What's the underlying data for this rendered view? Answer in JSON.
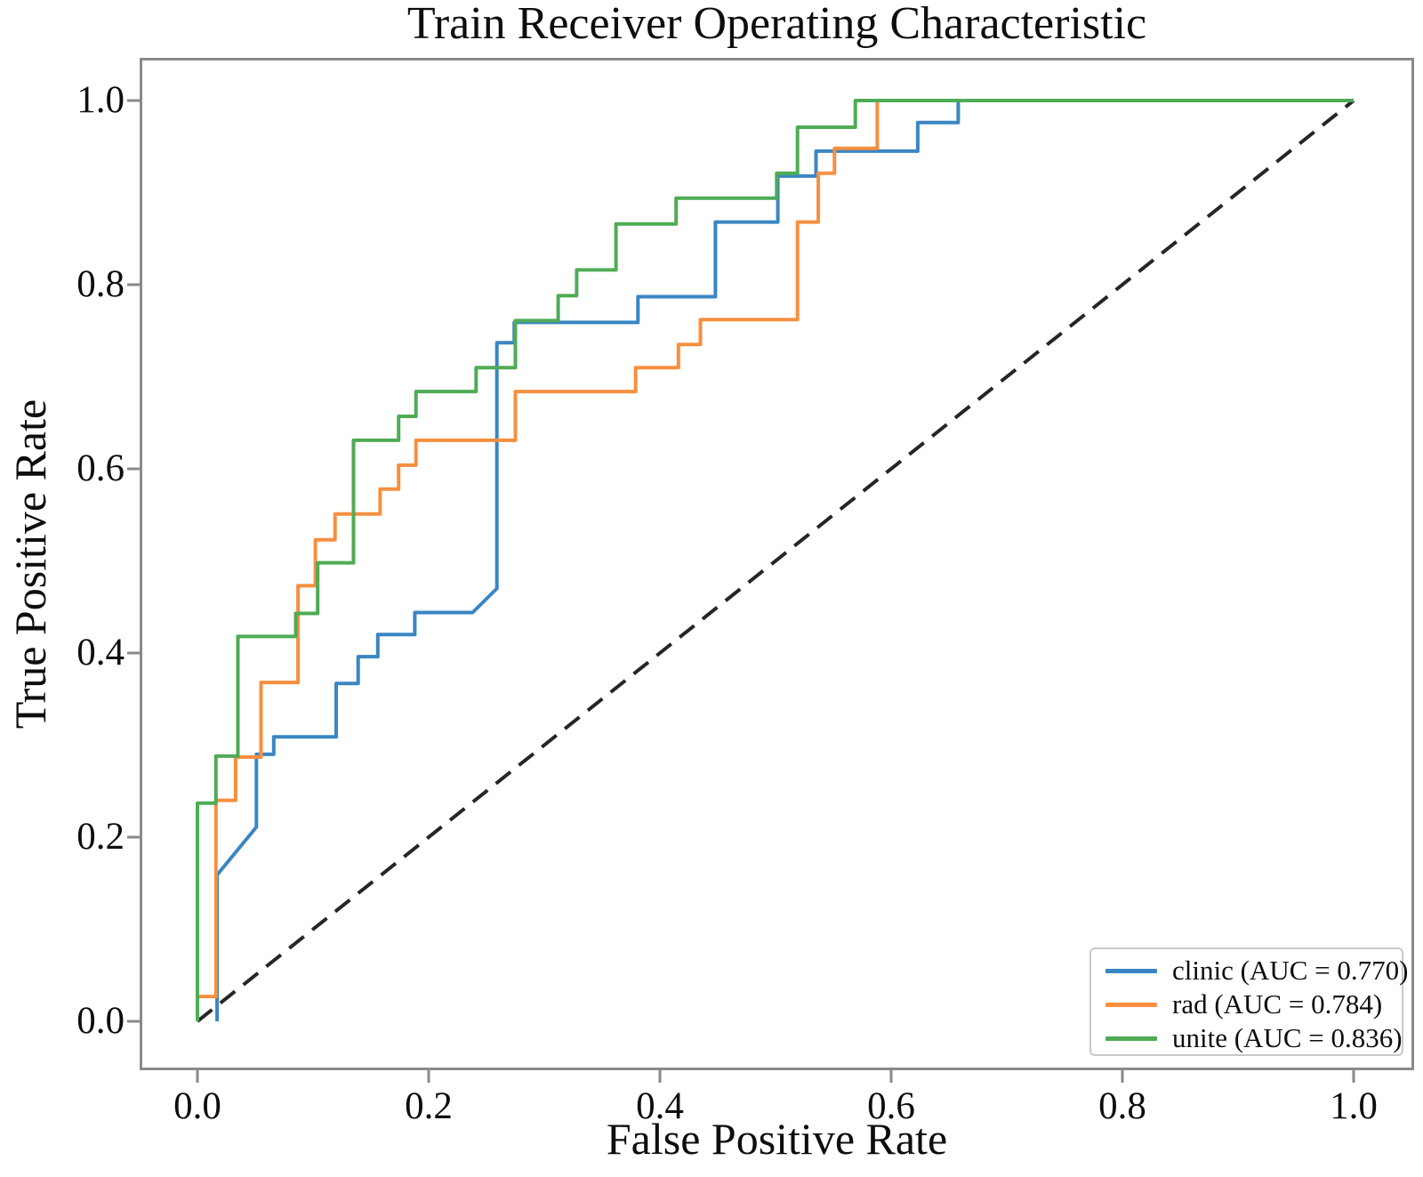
{
  "chart_data": {
    "type": "line",
    "subtype": "roc-step-curves",
    "title": "Train Receiver Operating Characteristic",
    "xlabel": "False Positive Rate",
    "ylabel": "True Positive Rate",
    "xlim": [
      -0.05,
      1.05
    ],
    "ylim": [
      -0.05,
      1.05
    ],
    "grid": false,
    "legend_position": "lower right",
    "x_ticks": [
      0.0,
      0.2,
      0.4,
      0.6,
      0.8,
      1.0
    ],
    "y_ticks": [
      0.0,
      0.2,
      0.4,
      0.6,
      0.8,
      1.0
    ],
    "x_tick_labels": [
      "0.0",
      "0.2",
      "0.4",
      "0.6",
      "0.8",
      "1.0"
    ],
    "y_tick_labels": [
      "0.0",
      "0.2",
      "0.4",
      "0.6",
      "0.8",
      "1.0"
    ],
    "series": [
      {
        "name": "clinic",
        "auc": 0.77,
        "legend": "clinic (AUC = 0.770)",
        "color": "#3a86c3",
        "points": [
          [
            0.017,
            0
          ],
          [
            0.017,
            0.159
          ],
          [
            0.051,
            0.211
          ],
          [
            0.051,
            0.29
          ],
          [
            0.066,
            0.29
          ],
          [
            0.066,
            0.309
          ],
          [
            0.12,
            0.309
          ],
          [
            0.12,
            0.367
          ],
          [
            0.139,
            0.367
          ],
          [
            0.139,
            0.396
          ],
          [
            0.156,
            0.396
          ],
          [
            0.156,
            0.42
          ],
          [
            0.188,
            0.42
          ],
          [
            0.188,
            0.444
          ],
          [
            0.238,
            0.444
          ],
          [
            0.259,
            0.47
          ],
          [
            0.259,
            0.737
          ],
          [
            0.274,
            0.737
          ],
          [
            0.274,
            0.759
          ],
          [
            0.381,
            0.759
          ],
          [
            0.381,
            0.787
          ],
          [
            0.448,
            0.787
          ],
          [
            0.448,
            0.868
          ],
          [
            0.502,
            0.868
          ],
          [
            0.502,
            0.918
          ],
          [
            0.535,
            0.918
          ],
          [
            0.535,
            0.945
          ],
          [
            0.623,
            0.945
          ],
          [
            0.623,
            0.976
          ],
          [
            0.658,
            0.976
          ],
          [
            0.658,
            1
          ],
          [
            1,
            1
          ]
        ]
      },
      {
        "name": "rad",
        "auc": 0.784,
        "legend": "rad (AUC = 0.784)",
        "color": "#f78f3e",
        "points": [
          [
            0,
            0
          ],
          [
            0,
            0.027
          ],
          [
            0.016,
            0.027
          ],
          [
            0.016,
            0.24
          ],
          [
            0.033,
            0.24
          ],
          [
            0.033,
            0.287
          ],
          [
            0.055,
            0.287
          ],
          [
            0.055,
            0.368
          ],
          [
            0.087,
            0.368
          ],
          [
            0.087,
            0.473
          ],
          [
            0.102,
            0.473
          ],
          [
            0.102,
            0.523
          ],
          [
            0.119,
            0.523
          ],
          [
            0.119,
            0.551
          ],
          [
            0.158,
            0.551
          ],
          [
            0.158,
            0.578
          ],
          [
            0.174,
            0.578
          ],
          [
            0.174,
            0.604
          ],
          [
            0.189,
            0.604
          ],
          [
            0.189,
            0.631
          ],
          [
            0.275,
            0.631
          ],
          [
            0.275,
            0.684
          ],
          [
            0.379,
            0.684
          ],
          [
            0.379,
            0.71
          ],
          [
            0.416,
            0.71
          ],
          [
            0.416,
            0.735
          ],
          [
            0.435,
            0.735
          ],
          [
            0.435,
            0.762
          ],
          [
            0.519,
            0.762
          ],
          [
            0.519,
            0.868
          ],
          [
            0.537,
            0.868
          ],
          [
            0.537,
            0.921
          ],
          [
            0.551,
            0.921
          ],
          [
            0.551,
            0.948
          ],
          [
            0.588,
            0.948
          ],
          [
            0.588,
            1
          ],
          [
            1,
            1
          ]
        ]
      },
      {
        "name": "unite",
        "auc": 0.836,
        "legend": "unite (AUC = 0.836)",
        "color": "#4fab55",
        "points": [
          [
            0,
            0
          ],
          [
            0,
            0.237
          ],
          [
            0.016,
            0.237
          ],
          [
            0.016,
            0.288
          ],
          [
            0.035,
            0.288
          ],
          [
            0.035,
            0.418
          ],
          [
            0.085,
            0.418
          ],
          [
            0.085,
            0.443
          ],
          [
            0.104,
            0.443
          ],
          [
            0.104,
            0.498
          ],
          [
            0.135,
            0.498
          ],
          [
            0.135,
            0.631
          ],
          [
            0.174,
            0.631
          ],
          [
            0.174,
            0.657
          ],
          [
            0.189,
            0.657
          ],
          [
            0.189,
            0.684
          ],
          [
            0.241,
            0.684
          ],
          [
            0.241,
            0.71
          ],
          [
            0.275,
            0.71
          ],
          [
            0.275,
            0.761
          ],
          [
            0.312,
            0.761
          ],
          [
            0.312,
            0.788
          ],
          [
            0.328,
            0.788
          ],
          [
            0.328,
            0.816
          ],
          [
            0.362,
            0.816
          ],
          [
            0.362,
            0.866
          ],
          [
            0.414,
            0.866
          ],
          [
            0.414,
            0.894
          ],
          [
            0.501,
            0.894
          ],
          [
            0.501,
            0.921
          ],
          [
            0.519,
            0.921
          ],
          [
            0.519,
            0.971
          ],
          [
            0.569,
            0.971
          ],
          [
            0.569,
            1
          ],
          [
            1,
            1
          ]
        ]
      }
    ],
    "reference_line": {
      "name": "chance",
      "style": "dashed",
      "color": "#262626",
      "points": [
        [
          0,
          0
        ],
        [
          1,
          1
        ]
      ]
    },
    "axis_color": "#8a8a8a",
    "text_color": "#0d0d0d",
    "legend_border_color": "#c9c9c9"
  }
}
